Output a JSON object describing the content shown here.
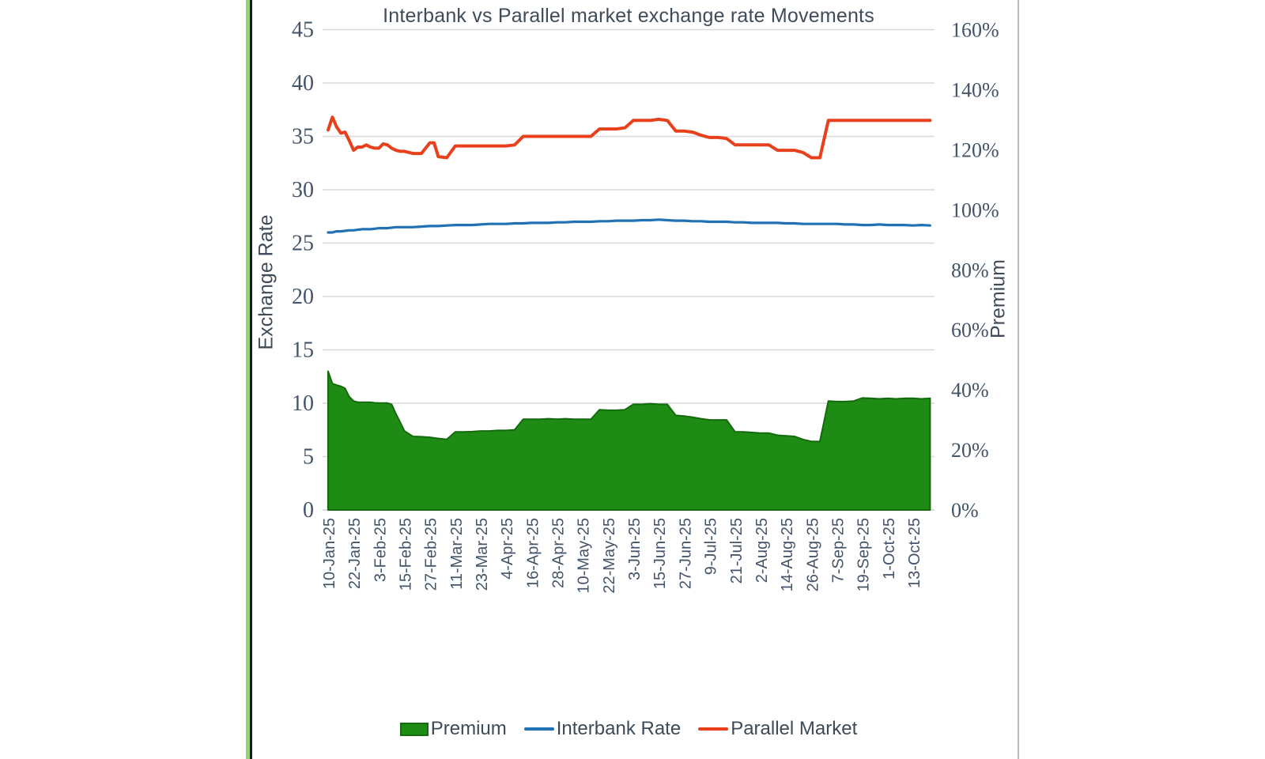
{
  "title": "Interbank vs Parallel market exchange rate Movements",
  "left_axis": {
    "label": "Exchange Rate",
    "min": 0,
    "max": 45,
    "step": 5,
    "tick_labels": [
      "0",
      "5",
      "10",
      "15",
      "20",
      "25",
      "30",
      "35",
      "40",
      "45"
    ]
  },
  "right_axis": {
    "label": "Premium",
    "min": 0,
    "max": 160,
    "step": 20,
    "tick_labels": [
      "0%",
      "20%",
      "40%",
      "60%",
      "80%",
      "100%",
      "120%",
      "140%",
      "160%"
    ]
  },
  "x_axis": {
    "tick_labels": [
      "10-Jan-25",
      "22-Jan-25",
      "3-Feb-25",
      "15-Feb-25",
      "27-Feb-25",
      "11-Mar-25",
      "23-Mar-25",
      "4-Apr-25",
      "16-Apr-25",
      "28-Apr-25",
      "10-May-25",
      "22-May-25",
      "3-Jun-25",
      "15-Jun-25",
      "27-Jun-25",
      "9-Jul-25",
      "21-Jul-25",
      "2-Aug-25",
      "14-Aug-25",
      "26-Aug-25",
      "7-Sep-25",
      "19-Sep-25",
      "1-Oct-25",
      "13-Oct-25"
    ],
    "tick_day_offsets": [
      0,
      12,
      24,
      36,
      48,
      60,
      72,
      84,
      96,
      108,
      120,
      132,
      144,
      156,
      168,
      180,
      192,
      204,
      216,
      228,
      240,
      252,
      264,
      276
    ]
  },
  "legend": {
    "items": [
      {
        "label": "Premium",
        "swatch": "area",
        "color": "#1e8c14",
        "border": "#156a0e"
      },
      {
        "label": "Interbank Rate",
        "swatch": "line",
        "color": "#2171b5"
      },
      {
        "label": "Parallel Market",
        "swatch": "line",
        "color": "#e8401c"
      }
    ]
  },
  "colors": {
    "premium_fill": "#1e8c14",
    "premium_border": "#156a0e",
    "interbank_line": "#2171b5",
    "parallel_line": "#e8401c",
    "gridline": "#d9d9d9",
    "baseline": "#cfcfcf",
    "axis_text": "#44546a",
    "title_text": "#3f4b58",
    "left_accent_green": "#8ad874",
    "left_accent_black": "#1c1c1c",
    "right_border_gray": "#b4bbc2"
  },
  "chart_data": {
    "type": "area+line combo (area on secondary axis, lines on primary axis)",
    "title": "Interbank vs Parallel market exchange rate Movements",
    "xlabel": "",
    "ylabel_left": "Exchange Rate",
    "ylabel_right": "Premium",
    "left_axis_range": [
      0,
      45
    ],
    "right_axis_range": [
      0,
      160
    ],
    "grid": "horizontal only",
    "legend_position": "bottom",
    "x_dates": [
      "10-Jan-25",
      "12-Jan-25",
      "14-Jan-25",
      "16-Jan-25",
      "18-Jan-25",
      "20-Jan-25",
      "22-Jan-25",
      "24-Jan-25",
      "26-Jan-25",
      "28-Jan-25",
      "30-Jan-25",
      "1-Feb-25",
      "3-Feb-25",
      "5-Feb-25",
      "7-Feb-25",
      "9-Feb-25",
      "11-Feb-25",
      "13-Feb-25",
      "15-Feb-25",
      "19-Feb-25",
      "23-Feb-25",
      "27-Feb-25",
      "1-Mar-25",
      "3-Mar-25",
      "7-Mar-25",
      "11-Mar-25",
      "15-Mar-25",
      "19-Mar-25",
      "23-Mar-25",
      "27-Mar-25",
      "31-Mar-25",
      "4-Apr-25",
      "8-Apr-25",
      "12-Apr-25",
      "16-Apr-25",
      "20-Apr-25",
      "24-Apr-25",
      "28-Apr-25",
      "2-May-25",
      "6-May-25",
      "10-May-25",
      "14-May-25",
      "18-May-25",
      "22-May-25",
      "26-May-25",
      "30-May-25",
      "3-Jun-25",
      "7-Jun-25",
      "11-Jun-25",
      "15-Jun-25",
      "19-Jun-25",
      "23-Jun-25",
      "27-Jun-25",
      "1-Jul-25",
      "5-Jul-25",
      "9-Jul-25",
      "13-Jul-25",
      "17-Jul-25",
      "21-Jul-25",
      "25-Jul-25",
      "29-Jul-25",
      "2-Aug-25",
      "6-Aug-25",
      "10-Aug-25",
      "14-Aug-25",
      "18-Aug-25",
      "22-Aug-25",
      "26-Aug-25",
      "30-Aug-25",
      "3-Sep-25",
      "7-Sep-25",
      "11-Sep-25",
      "15-Sep-25",
      "19-Sep-25",
      "23-Sep-25",
      "27-Sep-25",
      "1-Oct-25",
      "5-Oct-25",
      "9-Oct-25",
      "13-Oct-25",
      "17-Oct-25",
      "21-Oct-25"
    ],
    "x_day_offsets": [
      0,
      2,
      4,
      6,
      8,
      10,
      12,
      14,
      16,
      18,
      20,
      22,
      24,
      26,
      28,
      30,
      32,
      34,
      36,
      40,
      44,
      48,
      50,
      52,
      56,
      60,
      64,
      68,
      72,
      76,
      80,
      84,
      88,
      92,
      96,
      100,
      104,
      108,
      112,
      116,
      120,
      124,
      128,
      132,
      136,
      140,
      144,
      148,
      152,
      156,
      160,
      164,
      168,
      172,
      176,
      180,
      184,
      188,
      192,
      196,
      200,
      204,
      208,
      212,
      216,
      220,
      224,
      228,
      232,
      236,
      240,
      244,
      248,
      252,
      256,
      260,
      264,
      268,
      272,
      276,
      280,
      284
    ],
    "series": [
      {
        "name": "Premium",
        "chart_type": "area",
        "axis": "right",
        "unit": "percent",
        "values": [
          46.2,
          42.1,
          41.6,
          41.2,
          40.5,
          37.7,
          36.3,
          35.9,
          35.9,
          35.9,
          35.9,
          35.7,
          35.6,
          35.6,
          35.6,
          35.2,
          32.0,
          29.2,
          26.3,
          24.5,
          24.4,
          24.2,
          24.0,
          23.8,
          23.5,
          26.0,
          26.0,
          26.1,
          26.3,
          26.3,
          26.5,
          26.5,
          26.7,
          30.2,
          30.2,
          30.2,
          30.4,
          30.2,
          30.4,
          30.2,
          30.2,
          30.2,
          33.4,
          33.2,
          33.2,
          33.4,
          35.2,
          35.2,
          35.4,
          35.2,
          35.2,
          31.5,
          31.3,
          30.9,
          30.4,
          30.0,
          30.0,
          30.0,
          26.0,
          26.0,
          25.8,
          25.6,
          25.6,
          24.9,
          24.7,
          24.5,
          23.5,
          22.8,
          22.8,
          36.3,
          36.1,
          36.1,
          36.3,
          37.3,
          37.2,
          37.0,
          37.2,
          37.0,
          37.2,
          37.2,
          37.0,
          37.2
        ]
      },
      {
        "name": "Interbank Rate",
        "chart_type": "line",
        "axis": "left",
        "unit": "exchange rate",
        "values": [
          26.0,
          26.0,
          26.1,
          26.1,
          26.15,
          26.2,
          26.2,
          26.25,
          26.3,
          26.3,
          26.3,
          26.35,
          26.4,
          26.4,
          26.4,
          26.45,
          26.5,
          26.5,
          26.5,
          26.5,
          26.55,
          26.6,
          26.6,
          26.6,
          26.65,
          26.7,
          26.7,
          26.7,
          26.75,
          26.8,
          26.8,
          26.8,
          26.85,
          26.85,
          26.9,
          26.9,
          26.9,
          26.95,
          26.95,
          27.0,
          27.0,
          27.0,
          27.05,
          27.05,
          27.1,
          27.1,
          27.1,
          27.15,
          27.15,
          27.2,
          27.15,
          27.1,
          27.1,
          27.05,
          27.05,
          27.0,
          27.0,
          27.0,
          26.95,
          26.95,
          26.9,
          26.9,
          26.9,
          26.9,
          26.85,
          26.85,
          26.8,
          26.8,
          26.8,
          26.8,
          26.8,
          26.75,
          26.75,
          26.7,
          26.7,
          26.75,
          26.7,
          26.7,
          26.7,
          26.65,
          26.7,
          26.65
        ]
      },
      {
        "name": "Parallel Market",
        "chart_type": "line",
        "axis": "left",
        "unit": "exchange rate",
        "values": [
          35.6,
          36.8,
          35.9,
          35.3,
          35.4,
          34.6,
          33.7,
          34.0,
          34.0,
          34.2,
          34.0,
          33.9,
          33.9,
          34.3,
          34.2,
          33.9,
          33.7,
          33.6,
          33.6,
          33.4,
          33.4,
          34.4,
          34.4,
          33.1,
          33.0,
          34.1,
          34.1,
          34.1,
          34.1,
          34.1,
          34.1,
          34.1,
          34.2,
          35.0,
          35.0,
          35.0,
          35.0,
          35.0,
          35.0,
          35.0,
          35.0,
          35.0,
          35.7,
          35.7,
          35.7,
          35.8,
          36.5,
          36.5,
          36.5,
          36.6,
          36.5,
          35.5,
          35.5,
          35.4,
          35.1,
          34.9,
          34.9,
          34.8,
          34.2,
          34.2,
          34.2,
          34.2,
          34.2,
          33.7,
          33.7,
          33.7,
          33.5,
          33.0,
          33.0,
          36.5,
          36.5,
          36.5,
          36.5,
          36.5,
          36.5,
          36.5,
          36.5,
          36.5,
          36.5,
          36.5,
          36.5,
          36.5
        ]
      }
    ]
  }
}
